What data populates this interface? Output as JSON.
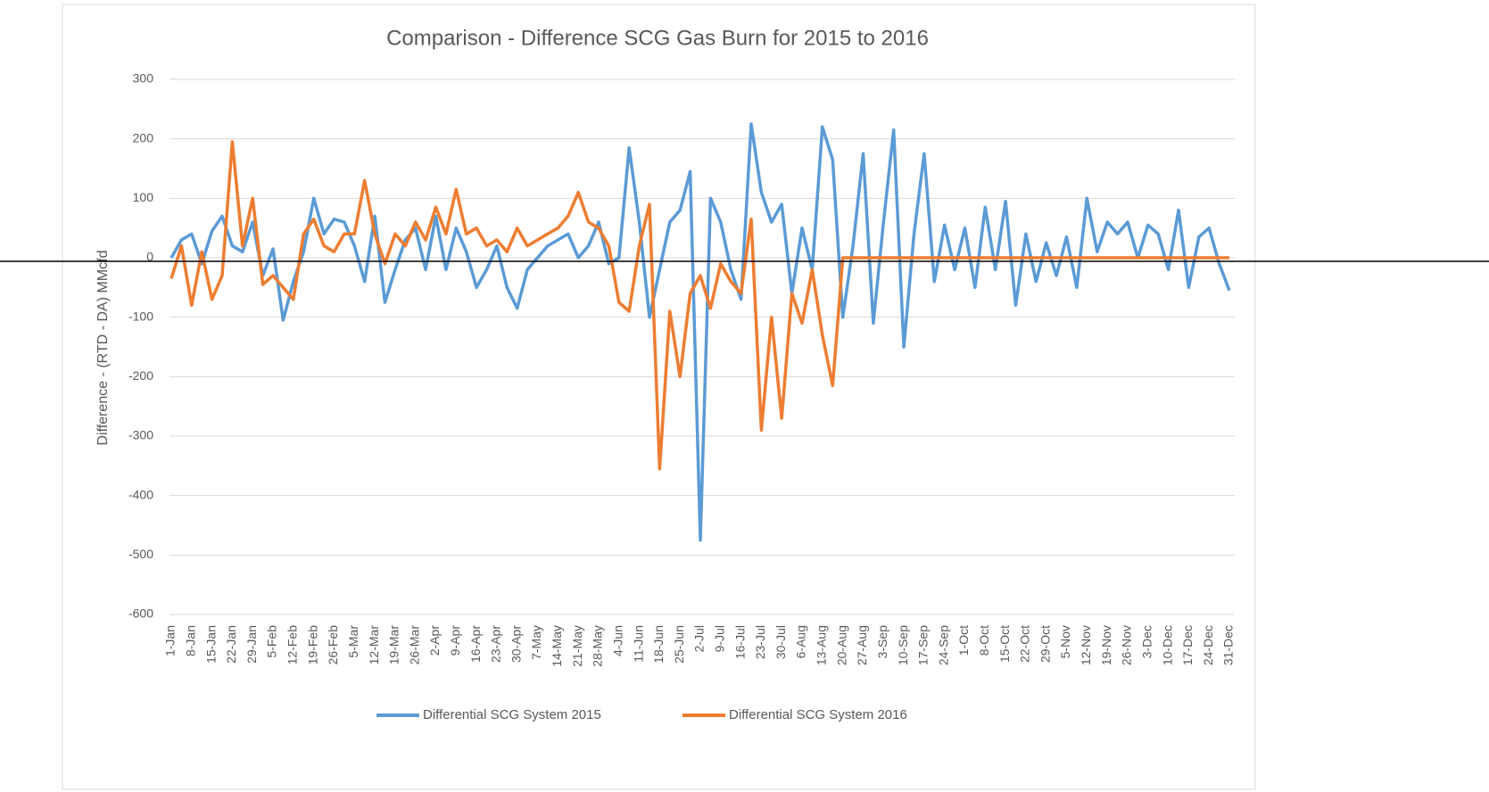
{
  "chart_data": {
    "type": "line",
    "title": "Comparison - Difference SCG Gas Burn for 2015 to 2016",
    "y_label": "Difference - (RTD - DA) MMcfd",
    "categories": [
      "1-Jan",
      null,
      "8-Jan",
      null,
      "15-Jan",
      null,
      "22-Jan",
      null,
      "29-Jan",
      null,
      "5-Feb",
      null,
      "12-Feb",
      null,
      "19-Feb",
      null,
      "26-Feb",
      null,
      "5-Mar",
      null,
      "12-Mar",
      null,
      "19-Mar",
      null,
      "26-Mar",
      null,
      "2-Apr",
      null,
      "9-Apr",
      null,
      "16-Apr",
      null,
      "23-Apr",
      null,
      "30-Apr",
      null,
      "7-May",
      null,
      "14-May",
      null,
      "21-May",
      null,
      "28-May",
      null,
      "4-Jun",
      null,
      "11-Jun",
      null,
      "18-Jun",
      null,
      "25-Jun",
      null,
      "2-Jul",
      null,
      "9-Jul",
      null,
      "16-Jul",
      null,
      "23-Jul",
      null,
      "30-Jul",
      null,
      "6-Aug",
      null,
      "13-Aug",
      null,
      "20-Aug",
      null,
      "27-Aug",
      null,
      "3-Sep",
      null,
      "10-Sep",
      null,
      "17-Sep",
      null,
      "24-Sep",
      null,
      "1-Oct",
      null,
      "8-Oct",
      null,
      "15-Oct",
      null,
      "22-Oct",
      null,
      "29-Oct",
      null,
      "5-Nov",
      null,
      "12-Nov",
      null,
      "19-Nov",
      null,
      "26-Nov",
      null,
      "3-Dec",
      null,
      "10-Dec",
      null,
      "17-Dec",
      null,
      "24-Dec",
      null,
      "31-Dec"
    ],
    "series": [
      {
        "name": "Differential SCG System 2015",
        "color": "#5b9bd5",
        "values": [
          0,
          30,
          40,
          -10,
          45,
          70,
          20,
          10,
          60,
          -30,
          15,
          -105,
          -40,
          10,
          100,
          40,
          65,
          60,
          20,
          -40,
          70,
          -75,
          -20,
          30,
          50,
          -20,
          70,
          -20,
          50,
          10,
          -50,
          -20,
          20,
          -50,
          -85,
          -20,
          0,
          20,
          30,
          40,
          0,
          20,
          60,
          -10,
          0,
          185,
          60,
          -100,
          -20,
          60,
          80,
          145,
          -475,
          100,
          60,
          -20,
          -70,
          225,
          110,
          60,
          90,
          -60,
          50,
          -20,
          220,
          165,
          -100,
          20,
          175,
          -110,
          60,
          215,
          -150,
          40,
          175,
          -40,
          55,
          -20,
          50,
          -50,
          85,
          -20,
          95,
          -80,
          40,
          -40,
          25,
          -30,
          35,
          -50,
          100,
          10,
          60,
          40,
          60,
          0,
          55,
          40,
          -20,
          80,
          -50,
          35,
          50,
          -10,
          -55
        ]
      },
      {
        "name": "Differential SCG System 2016",
        "color": "#ed7d31",
        "values": [
          -35,
          20,
          -80,
          10,
          -70,
          -30,
          195,
          20,
          100,
          -45,
          -30,
          -50,
          -70,
          40,
          65,
          20,
          10,
          40,
          40,
          130,
          40,
          -10,
          40,
          20,
          60,
          30,
          85,
          40,
          115,
          40,
          50,
          20,
          30,
          10,
          50,
          20,
          30,
          40,
          50,
          70,
          110,
          60,
          50,
          20,
          -75,
          -90,
          20,
          90,
          -355,
          -90,
          -200,
          -60,
          -30,
          -85,
          -10,
          -40,
          -60,
          65,
          -290,
          -100,
          -270,
          -60,
          -110,
          -20,
          -130,
          -215,
          0,
          0,
          0,
          0,
          0,
          0,
          0,
          0,
          0,
          0,
          0,
          0,
          0,
          0,
          0,
          0,
          0,
          0,
          0,
          0,
          0,
          0,
          0,
          0,
          0,
          0,
          0,
          0,
          0,
          0,
          0,
          0,
          0,
          0,
          0,
          0,
          0,
          0,
          0
        ]
      }
    ],
    "ylim": [
      -600,
      300
    ],
    "yticks": [
      -600,
      -500,
      -400,
      -300,
      -200,
      -100,
      0,
      100,
      200,
      300
    ],
    "grid": true,
    "legend": "bottom"
  }
}
